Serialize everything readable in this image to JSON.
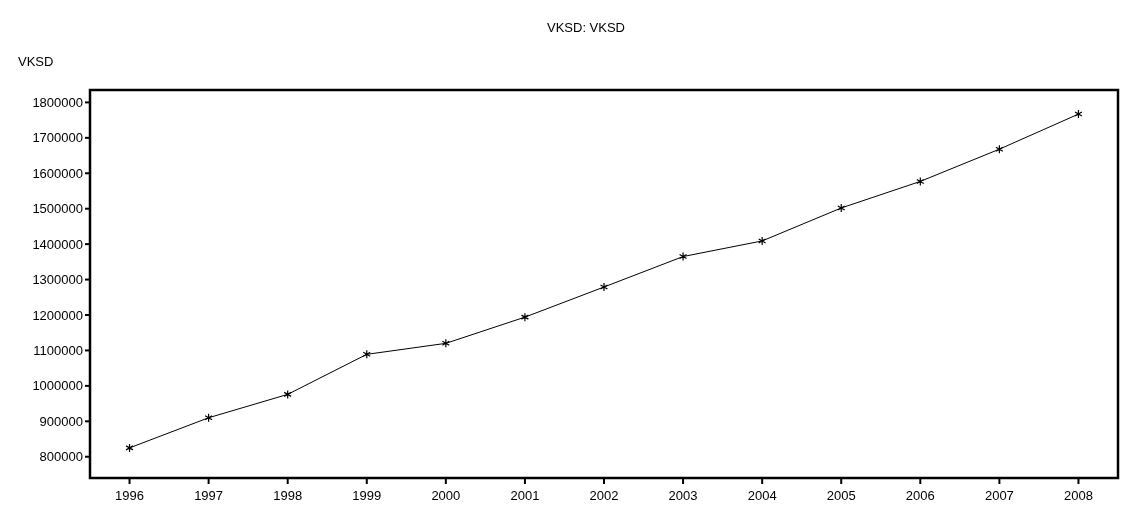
{
  "chart_data": {
    "type": "line",
    "title": "VKSD: VKSD",
    "ylabel": "VKSD",
    "categories": [
      "1996",
      "1997",
      "1998",
      "1999",
      "2000",
      "2001",
      "2002",
      "2003",
      "2004",
      "2005",
      "2006",
      "2007",
      "2008"
    ],
    "series": [
      {
        "color": "#000000",
        "values": [
          825000,
          910000,
          976000,
          1089000,
          1120000,
          1194000,
          1279000,
          1365000,
          1409000,
          1502000,
          1577000,
          1668000,
          1767000
        ]
      }
    ],
    "ylim": [
      740000,
      1835000
    ],
    "yticks": [
      800000,
      900000,
      1000000,
      1100000,
      1200000,
      1300000,
      1400000,
      1500000,
      1600000,
      1700000,
      1800000
    ],
    "grid": false,
    "marker": "cross",
    "line_style": "solid"
  }
}
